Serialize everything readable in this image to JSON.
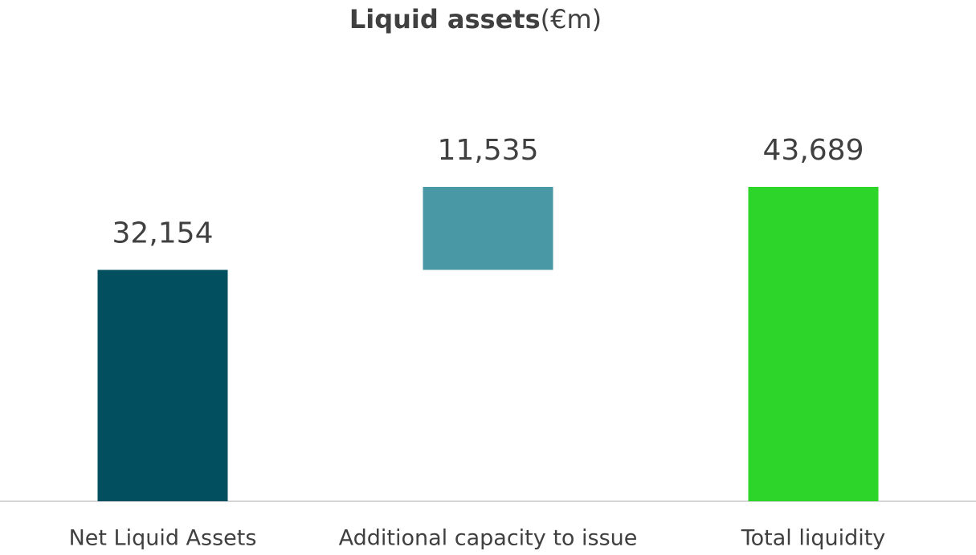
{
  "chart_data": {
    "type": "waterfall",
    "title": "Liquid assets",
    "subtitle": "(€m)",
    "categories": [
      "Net Liquid Assets",
      "Additional capacity to issue",
      "Total liquidity"
    ],
    "values": [
      32154,
      11535,
      43689
    ],
    "value_labels": [
      "32,154",
      "11,535",
      "43,689"
    ],
    "colors": [
      "#014f5f",
      "#4899a5",
      "#2dd42a"
    ]
  }
}
